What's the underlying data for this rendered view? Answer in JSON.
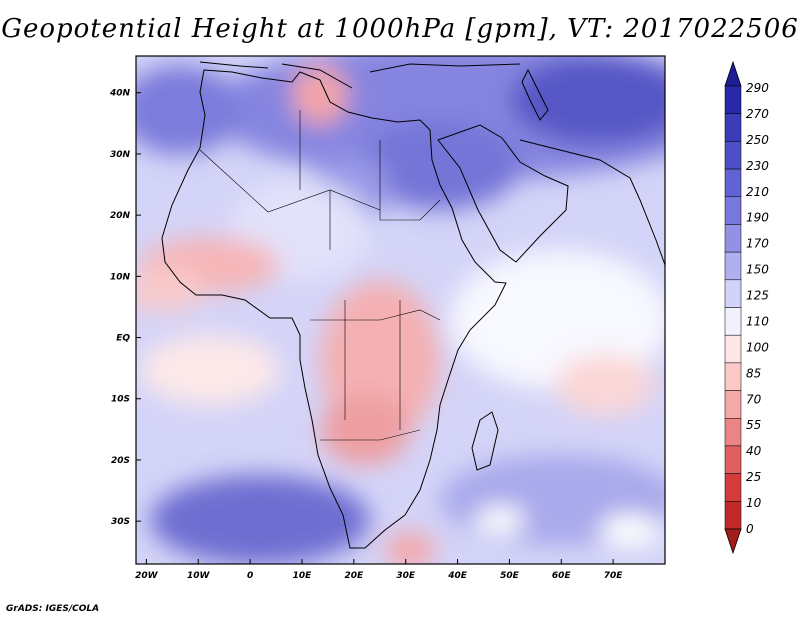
{
  "title": "Geopotential Height at 1000hPa [gpm], VT: 2017022506",
  "credit": "GrADS: IGES/COLA",
  "map": {
    "projection": "latlon",
    "lon_range": [
      -22,
      80
    ],
    "lat_range": [
      -37,
      46
    ],
    "x_ticks": [
      "20W",
      "10W",
      "0",
      "10E",
      "20E",
      "30E",
      "40E",
      "50E",
      "60E",
      "70E"
    ],
    "x_tick_values": [
      -20,
      -10,
      0,
      10,
      20,
      30,
      40,
      50,
      60,
      70
    ],
    "y_ticks": [
      "40N",
      "30N",
      "20N",
      "10N",
      "EQ",
      "10S",
      "20S",
      "30S"
    ],
    "y_tick_values": [
      40,
      30,
      20,
      10,
      0,
      -10,
      -20,
      -30
    ]
  },
  "colorbar": {
    "labels": [
      "290",
      "270",
      "250",
      "230",
      "210",
      "190",
      "170",
      "150",
      "125",
      "110",
      "100",
      "85",
      "70",
      "55",
      "40",
      "25",
      "10",
      "0"
    ],
    "colors": [
      "#1e1e96",
      "#2828aa",
      "#3c3cb9",
      "#4f4fc8",
      "#6262d2",
      "#7878dc",
      "#9191e6",
      "#b0b0f0",
      "#d2d2fa",
      "#f2f2ff",
      "#ffe6e6",
      "#fcc8c8",
      "#f5a8a8",
      "#eb8585",
      "#e06060",
      "#d43c3c",
      "#c22a2a",
      "#a41d1d"
    ]
  }
}
